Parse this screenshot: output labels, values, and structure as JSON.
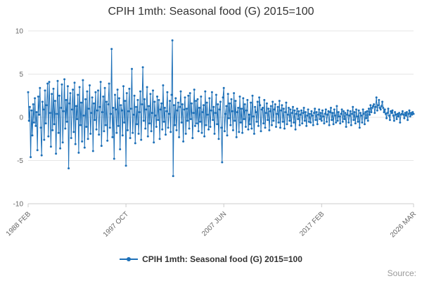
{
  "title": "CPIH 1mth: Seasonal food (G) 2015=100",
  "legend": {
    "label": "CPIH 1mth: Seasonal food (G) 2015=100"
  },
  "source": "Source:",
  "colors": {
    "series": "#1d70b8",
    "grid": "#e6e6e6",
    "axis": "#cccccc",
    "tick_text": "#666666",
    "title_text": "#333333"
  },
  "chart_data": {
    "type": "line",
    "title": "CPIH 1mth: Seasonal food (G) 2015=100",
    "xlabel": "",
    "ylabel": "",
    "ylim": [
      -10,
      10
    ],
    "yticks": [
      -10,
      -5,
      0,
      5,
      10
    ],
    "grid": true,
    "legend_position": "bottom",
    "frequency": "monthly",
    "x_start": "1988 FEB",
    "x_end": "2026 MAR",
    "x_tick_labels": [
      "1988 FEB",
      "1997 OCT",
      "2007 JUN",
      "2017 FEB",
      "2026 MAR"
    ],
    "x_tick_indices": [
      0,
      116,
      232,
      348,
      457
    ],
    "series": [
      {
        "name": "CPIH 1mth: Seasonal food (G) 2015=100",
        "values": [
          2.9,
          -0.4,
          1.2,
          -4.6,
          0.8,
          -2.1,
          1.5,
          -0.6,
          2.2,
          -1.0,
          0.6,
          -3.8,
          2.4,
          0.3,
          3.4,
          -1.2,
          -4.4,
          1.8,
          0.9,
          -2.6,
          3.1,
          -0.7,
          1.4,
          3.9,
          -2.2,
          4.1,
          0.5,
          -3.4,
          2.7,
          -1.5,
          3.3,
          -0.8,
          1.9,
          -4.2,
          0.4,
          4.2,
          -1.8,
          2.5,
          -3.6,
          1.1,
          3.8,
          -2.9,
          0.7,
          4.4,
          -1.3,
          2.0,
          -0.5,
          3.6,
          -5.9,
          1.6,
          2.8,
          -2.4,
          0.9,
          3.2,
          -1.7,
          4.0,
          -3.1,
          1.3,
          -0.2,
          2.6,
          -4.1,
          3.5,
          -0.9,
          1.7,
          -2.8,
          4.3,
          0.2,
          -3.5,
          2.1,
          -1.1,
          3.0,
          -2.5,
          1.0,
          3.7,
          -1.9,
          0.5,
          2.3,
          -3.9,
          1.6,
          -0.3,
          2.9,
          -1.4,
          0.8,
          3.1,
          -2.0,
          1.2,
          4.1,
          -3.3,
          0.6,
          2.4,
          -1.6,
          3.4,
          -0.9,
          1.8,
          -2.7,
          1.5,
          3.9,
          -1.2,
          0.4,
          7.9,
          -2.3,
          1.1,
          -4.8,
          2.6,
          0.9,
          -1.8,
          3.2,
          -1.0,
          2.2,
          -3.7,
          1.4,
          0.8,
          -2.1,
          3.6,
          -0.6,
          1.9,
          -5.6,
          2.8,
          -1.5,
          0.7,
          3.3,
          -2.4,
          1.0,
          5.6,
          -1.8,
          0.3,
          2.5,
          -3.0,
          1.2,
          -0.8,
          2.0,
          -1.9,
          0.6,
          3.0,
          -2.6,
          1.5,
          5.8,
          -0.4,
          2.1,
          -1.3,
          0.9,
          3.5,
          -2.2,
          1.3,
          -0.7,
          2.7,
          -1.6,
          0.5,
          3.1,
          -2.9,
          1.8,
          0.2,
          -1.1,
          2.4,
          -0.3,
          2.0,
          -2.5,
          0.9,
          1.6,
          -1.4,
          3.7,
          -0.5,
          1.1,
          -2.0,
          0.7,
          2.9,
          -1.2,
          0.4,
          1.9,
          -1.7,
          2.6,
          8.9,
          -6.8,
          1.4,
          -0.9,
          2.2,
          -1.5,
          0.8,
          1.7,
          -2.3,
          1.2,
          3.0,
          -0.6,
          1.5,
          -2.8,
          0.9,
          2.3,
          -1.9,
          1.0,
          -0.4,
          2.5,
          -1.3,
          2.8,
          -0.2,
          1.6,
          -2.4,
          0.5,
          3.2,
          -1.0,
          1.9,
          -0.7,
          2.1,
          -1.6,
          1.1,
          -0.5,
          2.4,
          -1.8,
          0.6,
          1.4,
          -2.2,
          3.0,
          -0.9,
          1.7,
          0.3,
          -1.4,
          2.2,
          -1.1,
          0.8,
          2.9,
          -0.3,
          1.2,
          -1.9,
          0.5,
          2.6,
          -0.8,
          1.5,
          -2.5,
          0.9,
          1.8,
          -1.2,
          -5.2,
          2.3,
          3.4,
          -1.6,
          0.4,
          1.3,
          -2.1,
          2.7,
          -0.1,
          1.6,
          -0.9,
          2.1,
          0.7,
          -1.5,
          2.8,
          -0.4,
          1.9,
          -2.3,
          0.6,
          1.1,
          -1.7,
          2.4,
          -0.6,
          1.0,
          -1.8,
          2.2,
          -0.2,
          1.5,
          -1.1,
          0.8,
          2.0,
          -1.4,
          0.3,
          -0.8,
          1.7,
          -1.3,
          2.5,
          0.1,
          -1.9,
          1.2,
          0.6,
          -0.5,
          1.8,
          -1.0,
          2.3,
          1.4,
          -1.6,
          0.9,
          1.1,
          -0.7,
          2.0,
          -1.2,
          0.5,
          1.6,
          -0.3,
          1.0,
          -1.5,
          0.7,
          1.3,
          -0.9,
          1.8,
          -0.4,
          0.9,
          1.5,
          -1.1,
          0.4,
          1.2,
          -0.6,
          1.9,
          -1.2,
          0.8,
          1.4,
          -0.5,
          1.0,
          -1.3,
          0.6,
          1.7,
          -0.8,
          0.3,
          1.1,
          -0.4,
          0.9,
          -1.0,
          0.5,
          1.2,
          -0.6,
          0.8,
          -1.4,
          0.4,
          1.0,
          -0.2,
          0.7,
          -0.9,
          0.3,
          0.8,
          -0.7,
          0.5,
          1.1,
          -0.4,
          0.6,
          -1.0,
          0.2,
          0.9,
          -0.5,
          0.4,
          -0.6,
          0.7,
          0.2,
          -0.9,
          0.5,
          1.0,
          -0.3,
          0.6,
          -0.8,
          0.3,
          0.9,
          -0.2,
          0.5,
          -0.4,
          0.8,
          0.1,
          -0.7,
          0.4,
          0.9,
          -0.5,
          0.3,
          0.7,
          -0.9,
          0.6,
          1.1,
          -0.3,
          0.5,
          -0.8,
          0.9,
          0.2,
          -0.6,
          1.3,
          -0.4,
          0.6,
          0.1,
          -0.7,
          0.4,
          0.9,
          -0.5,
          0.7,
          -0.2,
          0.5,
          -1.1,
          0.3,
          0.8,
          -0.6,
          0.2,
          0.7,
          -0.9,
          0.4,
          1.2,
          -0.3,
          0.6,
          -0.7,
          0.9,
          0.1,
          -0.5,
          0.8,
          -1.2,
          0.5,
          0.2,
          -0.6,
          0.9,
          0.4,
          -0.8,
          0.6,
          -0.1,
          0.7,
          -0.4,
          1.0,
          0.3,
          1.4,
          0.6,
          1.1,
          1.3,
          1.5,
          0.5,
          1.2,
          2.3,
          0.8,
          1.4,
          2.0,
          1.1,
          0.9,
          1.3,
          1.8,
          1.1,
          0.6,
          0.9,
          0.4,
          -0.1,
          0.5,
          1.0,
          0.2,
          -0.3,
          0.7,
          0.5,
          0.8,
          0.2,
          -0.4,
          0.6,
          0.3,
          -0.2,
          0.4,
          0.1,
          0.5,
          -0.6,
          0.3,
          0.4,
          0.7,
          0.3,
          -0.1,
          0.5,
          0.2,
          0.6,
          -0.3,
          0.4,
          0.8,
          0.1,
          0.5,
          0.3,
          0.6,
          0.4
        ]
      }
    ]
  }
}
